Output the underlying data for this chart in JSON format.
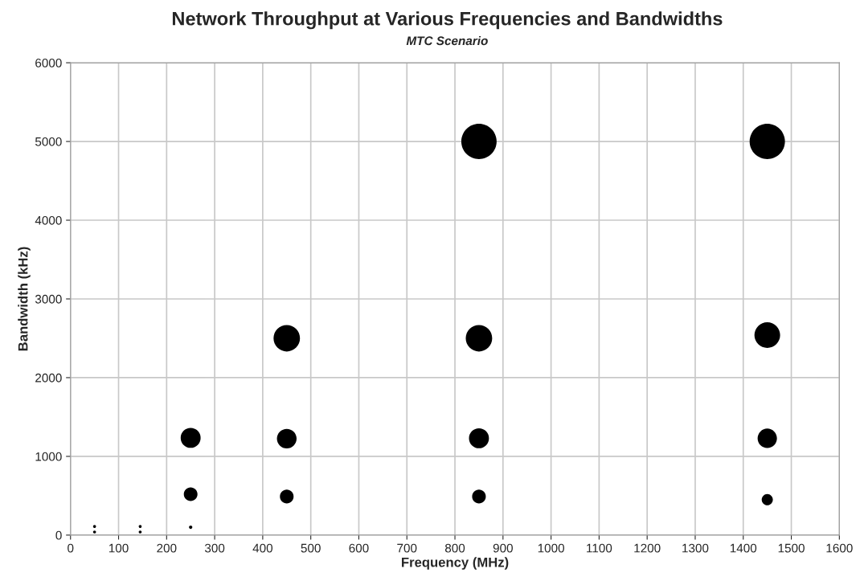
{
  "chart_data": {
    "type": "bubble",
    "title": "Network Throughput at Various Frequencies and Bandwidths",
    "subtitle": "MTC Scenario",
    "xlabel": "Frequency (MHz)",
    "ylabel": "Bandwidth (kHz)",
    "series": [
      {
        "color": "#000000",
        "x": [
          50,
          50,
          145,
          145,
          250,
          250,
          250,
          450,
          450,
          450,
          850,
          850,
          850,
          850,
          1450,
          1450,
          1450,
          1450
        ],
        "values": [
          110,
          40,
          110,
          40,
          100,
          520,
          1235,
          490,
          1225,
          2500,
          490,
          1230,
          2500,
          5000,
          450,
          1230,
          2540,
          5000
        ],
        "sizes": [
          0.007,
          0.007,
          0.007,
          0.007,
          0.009,
          0.15,
          0.32,
          0.15,
          0.31,
          0.56,
          0.15,
          0.32,
          0.56,
          1,
          0.1,
          0.3,
          0.53,
          1
        ]
      }
    ],
    "xlim": [
      0,
      1600
    ],
    "xticks": [
      0,
      100,
      200,
      300,
      400,
      500,
      600,
      700,
      800,
      900,
      1000,
      1100,
      1200,
      1300,
      1400,
      1500,
      1600
    ],
    "ylim": [
      0,
      6000
    ],
    "yticks": [
      0,
      1000,
      2000,
      3000,
      4000,
      5000,
      6000
    ],
    "grid": true,
    "legend": false
  }
}
